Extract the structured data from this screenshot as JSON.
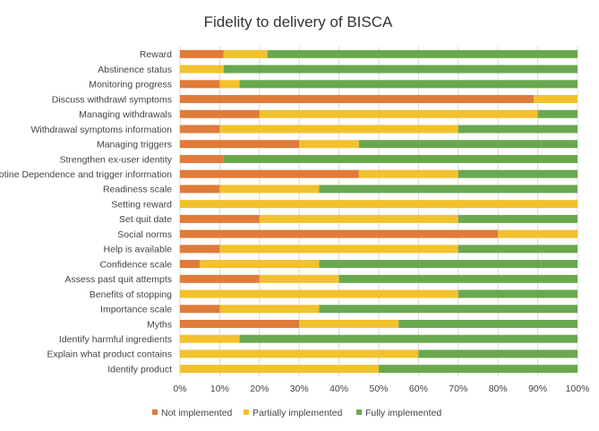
{
  "chart_data": {
    "type": "bar",
    "orientation": "horizontal",
    "stacked": "percent",
    "title": "Fidelity to delivery of BISCA",
    "xlabel": "",
    "ylabel": "",
    "xlim": [
      0,
      100
    ],
    "x_ticks": [
      "0%",
      "10%",
      "20%",
      "30%",
      "40%",
      "50%",
      "60%",
      "70%",
      "80%",
      "90%",
      "100%"
    ],
    "grid": true,
    "legend_position": "bottom",
    "categories": [
      "Reward",
      "Abstinence status",
      "Monitoring progress",
      "Discuss withdrawl symptoms",
      "Managing withdrawals",
      "Withdrawal symptoms information",
      "Managing triggers",
      "Strengthen ex-user identity",
      "Nicotine Dependence and trigger information",
      "Readiness scale",
      "Setting reward",
      "Set quit date",
      "Social norms",
      "Help is available",
      "Confidence scale",
      "Assess past quit attempts",
      "Benefits of stopping",
      "Importance scale",
      "Myths",
      "Identify harmful ingredients",
      "Explain what product contains",
      "Identify product"
    ],
    "series": [
      {
        "name": "Not implemented",
        "color": "#e07b39",
        "values": [
          11,
          0,
          10,
          89,
          20,
          10,
          30,
          11,
          45,
          10,
          0,
          20,
          80,
          10,
          5,
          20,
          0,
          10,
          30,
          0,
          0,
          0
        ]
      },
      {
        "name": "Partially implemented",
        "color": "#f2c12e",
        "values": [
          11,
          11,
          5,
          11,
          70,
          60,
          15,
          0,
          25,
          25,
          100,
          50,
          20,
          60,
          30,
          20,
          70,
          25,
          25,
          15,
          60,
          50
        ]
      },
      {
        "name": "Fully implemented",
        "color": "#6aa84f",
        "values": [
          78,
          89,
          85,
          0,
          10,
          30,
          55,
          89,
          30,
          65,
          0,
          30,
          0,
          30,
          65,
          60,
          30,
          65,
          45,
          85,
          40,
          50
        ]
      }
    ]
  }
}
